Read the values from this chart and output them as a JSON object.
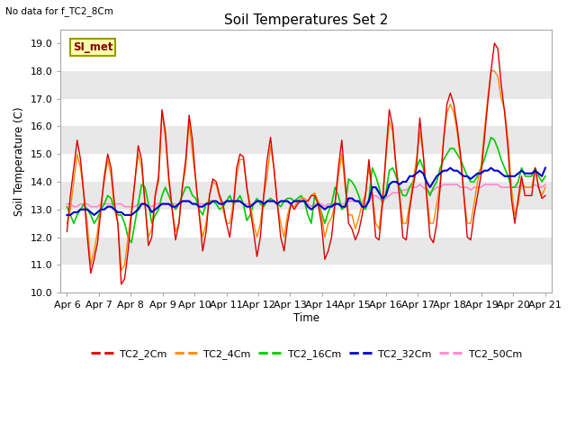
{
  "title": "Soil Temperatures Set 2",
  "ylabel": "Soil Temperature (C)",
  "xlabel": "Time",
  "no_data_text": "No data for f_TC2_8Cm",
  "si_met_label": "SI_met",
  "ylim": [
    10.0,
    19.5
  ],
  "yticks": [
    10.0,
    11.0,
    12.0,
    13.0,
    14.0,
    15.0,
    16.0,
    17.0,
    18.0,
    19.0
  ],
  "colors": {
    "TC2_2Cm": "#dd0000",
    "TC2_4Cm": "#ff8800",
    "TC2_16Cm": "#00cc00",
    "TC2_32Cm": "#0000cc",
    "TC2_50Cm": "#ff88cc"
  },
  "x_labels": [
    "Apr 6",
    "Apr 7",
    "Apr 8",
    "Apr 9",
    "Apr 10",
    "Apr 11",
    "Apr 12",
    "Apr 13",
    "Apr 14",
    "Apr 15",
    "Apr 16",
    "Apr 17",
    "Apr 18",
    "Apr 19",
    "Apr 20",
    "Apr 21"
  ],
  "band_colors": [
    "#ffffff",
    "#e8e8e8"
  ],
  "TC2_2Cm": [
    12.2,
    13.5,
    14.5,
    15.5,
    14.8,
    13.5,
    12.0,
    10.7,
    11.2,
    11.8,
    13.0,
    14.2,
    15.0,
    14.5,
    13.2,
    12.5,
    10.3,
    10.5,
    11.5,
    12.8,
    14.0,
    15.3,
    14.8,
    13.2,
    11.7,
    12.0,
    13.5,
    14.2,
    16.6,
    15.8,
    14.2,
    13.0,
    11.9,
    12.5,
    13.8,
    14.8,
    16.4,
    15.5,
    14.0,
    12.8,
    11.5,
    12.2,
    13.5,
    14.1,
    14.0,
    13.5,
    13.2,
    12.5,
    12.0,
    13.0,
    14.5,
    15.0,
    14.9,
    13.8,
    13.0,
    12.2,
    11.3,
    12.0,
    13.5,
    14.8,
    15.6,
    14.5,
    13.2,
    12.0,
    11.5,
    12.5,
    13.2,
    13.0,
    13.2,
    13.3,
    13.3,
    13.3,
    13.5,
    13.5,
    13.2,
    12.5,
    11.2,
    11.5,
    12.0,
    13.2,
    14.5,
    15.5,
    14.0,
    12.5,
    12.3,
    11.9,
    12.2,
    12.8,
    13.5,
    14.8,
    13.5,
    12.0,
    11.9,
    13.2,
    15.0,
    16.6,
    16.0,
    14.5,
    13.5,
    12.0,
    11.9,
    13.0,
    13.8,
    14.5,
    16.3,
    15.0,
    13.5,
    12.0,
    11.8,
    12.5,
    13.8,
    15.5,
    16.8,
    17.2,
    16.8,
    16.0,
    15.0,
    13.5,
    12.0,
    11.9,
    12.8,
    13.5,
    14.2,
    15.5,
    16.8,
    18.0,
    19.0,
    18.8,
    17.5,
    16.5,
    15.2,
    13.4,
    12.5,
    13.4,
    14.2,
    13.5,
    13.5,
    13.5,
    14.5,
    13.8,
    13.4,
    13.5
  ],
  "TC2_4Cm": [
    12.5,
    13.0,
    14.0,
    15.0,
    14.5,
    13.5,
    12.5,
    11.0,
    11.5,
    12.2,
    13.2,
    14.0,
    14.8,
    14.2,
    13.0,
    12.5,
    10.8,
    11.0,
    12.0,
    13.0,
    14.0,
    15.0,
    14.5,
    13.2,
    12.0,
    12.3,
    13.5,
    14.0,
    16.5,
    15.6,
    14.0,
    13.0,
    12.2,
    12.5,
    13.8,
    14.5,
    16.2,
    15.0,
    14.0,
    12.8,
    12.0,
    12.5,
    13.5,
    14.0,
    13.9,
    13.4,
    13.0,
    12.5,
    12.5,
    13.2,
    14.2,
    14.8,
    14.8,
    13.8,
    13.2,
    12.5,
    12.0,
    12.5,
    13.5,
    14.2,
    15.3,
    14.5,
    13.2,
    12.5,
    12.0,
    12.8,
    13.2,
    13.1,
    13.3,
    13.4,
    13.4,
    13.3,
    13.5,
    13.6,
    13.3,
    12.8,
    12.0,
    12.5,
    12.7,
    13.2,
    14.2,
    15.0,
    13.8,
    12.8,
    12.8,
    12.3,
    12.7,
    13.2,
    13.6,
    14.5,
    13.6,
    12.5,
    12.3,
    13.4,
    14.8,
    16.2,
    15.8,
    14.6,
    13.6,
    12.5,
    12.5,
    13.2,
    14.0,
    14.8,
    15.8,
    15.0,
    13.6,
    12.5,
    12.5,
    13.2,
    14.0,
    15.5,
    16.5,
    16.8,
    16.5,
    15.8,
    14.8,
    13.5,
    12.5,
    12.5,
    13.2,
    14.0,
    14.5,
    15.8,
    17.0,
    18.0,
    18.0,
    17.8,
    17.0,
    16.6,
    15.5,
    13.8,
    12.8,
    13.2,
    14.0,
    13.8,
    13.8,
    13.8,
    14.5,
    13.8,
    13.5,
    13.8
  ],
  "TC2_16Cm": [
    13.1,
    12.8,
    12.5,
    12.8,
    13.0,
    13.2,
    13.0,
    12.8,
    12.5,
    12.7,
    13.0,
    13.2,
    13.5,
    13.4,
    13.0,
    12.8,
    12.8,
    12.5,
    12.0,
    11.8,
    12.5,
    13.2,
    13.9,
    13.8,
    13.2,
    12.5,
    12.8,
    13.0,
    13.5,
    13.8,
    13.5,
    13.2,
    13.0,
    13.2,
    13.5,
    13.8,
    13.8,
    13.5,
    13.4,
    13.0,
    12.8,
    13.2,
    13.3,
    13.3,
    13.2,
    13.0,
    13.1,
    13.3,
    13.5,
    13.2,
    13.3,
    13.5,
    13.2,
    12.6,
    12.8,
    13.2,
    13.4,
    13.2,
    13.1,
    13.3,
    13.4,
    13.3,
    13.2,
    13.1,
    13.3,
    13.4,
    13.4,
    13.3,
    13.4,
    13.5,
    13.3,
    12.8,
    12.5,
    13.5,
    13.3,
    12.9,
    12.5,
    12.9,
    13.2,
    13.8,
    13.5,
    13.0,
    13.1,
    14.1,
    14.0,
    13.8,
    13.5,
    13.1,
    13.0,
    13.4,
    14.5,
    14.2,
    13.8,
    13.2,
    13.6,
    14.4,
    14.5,
    14.2,
    13.8,
    13.5,
    13.5,
    13.8,
    14.0,
    14.5,
    14.8,
    14.5,
    13.8,
    13.5,
    13.8,
    14.0,
    14.5,
    14.8,
    15.0,
    15.2,
    15.2,
    15.0,
    14.8,
    14.5,
    14.2,
    14.0,
    14.0,
    14.2,
    14.5,
    14.8,
    15.2,
    15.6,
    15.5,
    15.2,
    14.8,
    14.5,
    14.2,
    13.8,
    13.8,
    14.0,
    14.5,
    14.2,
    14.2,
    14.2,
    14.5,
    14.2,
    14.0,
    14.2
  ],
  "TC2_32Cm": [
    12.8,
    12.8,
    12.9,
    12.9,
    13.0,
    13.0,
    13.0,
    12.9,
    12.8,
    12.9,
    13.0,
    13.0,
    13.1,
    13.1,
    13.0,
    12.9,
    12.9,
    12.8,
    12.8,
    12.8,
    12.9,
    13.0,
    13.2,
    13.2,
    13.1,
    12.9,
    13.0,
    13.1,
    13.2,
    13.2,
    13.2,
    13.1,
    13.1,
    13.2,
    13.3,
    13.3,
    13.3,
    13.2,
    13.2,
    13.1,
    13.1,
    13.2,
    13.2,
    13.3,
    13.3,
    13.2,
    13.2,
    13.3,
    13.3,
    13.3,
    13.3,
    13.3,
    13.2,
    13.1,
    13.1,
    13.2,
    13.3,
    13.3,
    13.2,
    13.3,
    13.3,
    13.3,
    13.2,
    13.3,
    13.3,
    13.3,
    13.2,
    13.3,
    13.3,
    13.3,
    13.3,
    13.1,
    13.0,
    13.1,
    13.2,
    13.1,
    13.0,
    13.1,
    13.1,
    13.2,
    13.2,
    13.1,
    13.1,
    13.4,
    13.4,
    13.3,
    13.3,
    13.1,
    13.1,
    13.3,
    13.8,
    13.8,
    13.6,
    13.4,
    13.5,
    13.9,
    14.0,
    14.0,
    13.9,
    14.0,
    14.0,
    14.2,
    14.2,
    14.3,
    14.4,
    14.3,
    14.0,
    13.8,
    14.0,
    14.2,
    14.3,
    14.4,
    14.4,
    14.5,
    14.4,
    14.4,
    14.3,
    14.2,
    14.2,
    14.1,
    14.2,
    14.3,
    14.3,
    14.4,
    14.4,
    14.5,
    14.4,
    14.4,
    14.3,
    14.2,
    14.2,
    14.2,
    14.2,
    14.3,
    14.4,
    14.3,
    14.3,
    14.3,
    14.4,
    14.3,
    14.2,
    14.5
  ],
  "TC2_50Cm": [
    13.2,
    13.2,
    13.1,
    13.1,
    13.2,
    13.2,
    13.2,
    13.1,
    13.1,
    13.1,
    13.2,
    13.2,
    13.2,
    13.2,
    13.2,
    13.2,
    13.2,
    13.1,
    13.1,
    13.1,
    13.1,
    13.2,
    13.2,
    13.2,
    13.1,
    13.1,
    13.2,
    13.2,
    13.2,
    13.2,
    13.2,
    13.2,
    13.2,
    13.2,
    13.3,
    13.3,
    13.3,
    13.2,
    13.2,
    13.2,
    13.2,
    13.2,
    13.2,
    13.3,
    13.3,
    13.2,
    13.2,
    13.3,
    13.3,
    13.3,
    13.3,
    13.3,
    13.2,
    13.2,
    13.2,
    13.2,
    13.3,
    13.3,
    13.2,
    13.3,
    13.3,
    13.3,
    13.2,
    13.3,
    13.3,
    13.3,
    13.2,
    13.3,
    13.3,
    13.3,
    13.3,
    13.2,
    13.1,
    13.2,
    13.2,
    13.2,
    13.1,
    13.2,
    13.2,
    13.2,
    13.2,
    13.2,
    13.2,
    13.3,
    13.3,
    13.3,
    13.3,
    13.2,
    13.2,
    13.3,
    13.5,
    13.5,
    13.4,
    13.3,
    13.4,
    13.5,
    13.6,
    13.6,
    13.6,
    13.7,
    13.7,
    13.8,
    13.8,
    13.8,
    13.9,
    13.8,
    13.7,
    13.6,
    13.7,
    13.8,
    13.8,
    13.9,
    13.9,
    13.9,
    13.9,
    13.9,
    13.8,
    13.8,
    13.8,
    13.7,
    13.8,
    13.8,
    13.8,
    13.9,
    13.9,
    13.9,
    13.9,
    13.9,
    13.8,
    13.8,
    13.8,
    13.8,
    13.8,
    13.8,
    13.9,
    13.8,
    13.8,
    13.8,
    13.9,
    13.8,
    13.8,
    13.9
  ]
}
